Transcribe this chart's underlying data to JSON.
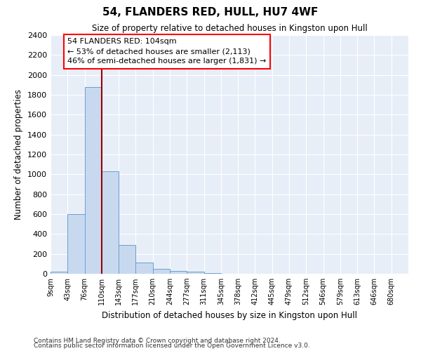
{
  "title": "54, FLANDERS RED, HULL, HU7 4WF",
  "subtitle": "Size of property relative to detached houses in Kingston upon Hull",
  "xlabel": "Distribution of detached houses by size in Kingston upon Hull",
  "ylabel": "Number of detached properties",
  "bin_labels": [
    "9sqm",
    "43sqm",
    "76sqm",
    "110sqm",
    "143sqm",
    "177sqm",
    "210sqm",
    "244sqm",
    "277sqm",
    "311sqm",
    "345sqm",
    "378sqm",
    "412sqm",
    "445sqm",
    "479sqm",
    "512sqm",
    "546sqm",
    "579sqm",
    "613sqm",
    "646sqm",
    "680sqm"
  ],
  "bar_heights": [
    20,
    600,
    1880,
    1030,
    290,
    115,
    50,
    25,
    20,
    10,
    0,
    0,
    0,
    0,
    0,
    0,
    0,
    0,
    0,
    0,
    0
  ],
  "bar_color": "#c8d9ef",
  "bar_edge_color": "#6a9fd0",
  "vline_x": 3.0,
  "annotation_text": "54 FLANDERS RED: 104sqm\n← 53% of detached houses are smaller (2,113)\n46% of semi-detached houses are larger (1,831) →",
  "vline_color": "#990000",
  "ylim_max": 2400,
  "yticks": [
    0,
    200,
    400,
    600,
    800,
    1000,
    1200,
    1400,
    1600,
    1800,
    2000,
    2200,
    2400
  ],
  "bg_color": "#e8eef7",
  "grid_color": "#d0d8e8",
  "footnote1": "Contains HM Land Registry data © Crown copyright and database right 2024.",
  "footnote2": "Contains public sector information licensed under the Open Government Licence v3.0."
}
